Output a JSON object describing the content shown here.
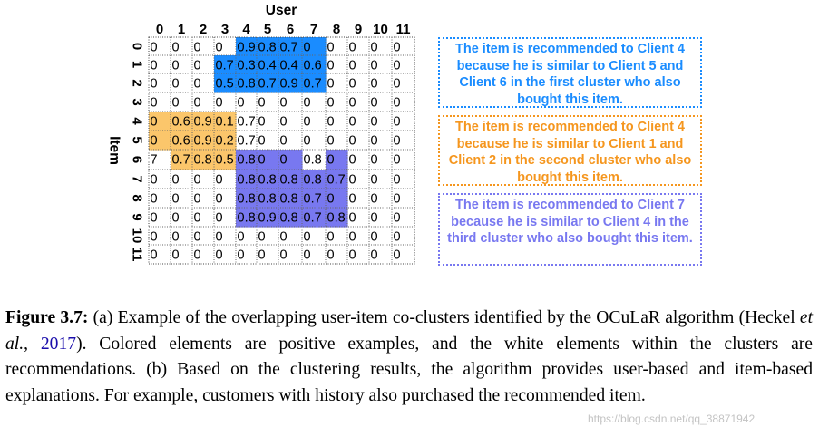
{
  "matrix": {
    "x_axis_label": "User",
    "y_axis_label": "Item",
    "col_labels": [
      "0",
      "1",
      "2",
      "3",
      "4",
      "5",
      "6",
      "7",
      "8",
      "9",
      "10",
      "11"
    ],
    "row_labels": [
      "0",
      "1",
      "2",
      "3",
      "4",
      "5",
      "6",
      "7",
      "8",
      "9",
      "10",
      "11"
    ],
    "cells": [
      [
        "0",
        "0",
        "0",
        "0",
        "0.9",
        "0.8",
        "0.7",
        "0",
        "0",
        "0",
        "0",
        "0"
      ],
      [
        "0",
        "0",
        "0",
        "0.7",
        "0.3",
        "0.4",
        "0.4",
        "0.6",
        "0",
        "0",
        "0",
        "0"
      ],
      [
        "0",
        "0",
        "0",
        "0.5",
        "0.8",
        "0.7",
        "0.9",
        "0.7",
        "0",
        "0",
        "0",
        "0"
      ],
      [
        "0",
        "0",
        "0",
        "0",
        "0",
        "0",
        "0",
        "0",
        "0",
        "0",
        "0",
        "0"
      ],
      [
        "0",
        "0.6",
        "0.9",
        "0.1",
        "0.7",
        "0",
        "0",
        "0",
        "0",
        "0",
        "0",
        "0"
      ],
      [
        "0",
        "0.6",
        "0.9",
        "0.2",
        "0.7",
        "0",
        "0",
        "0",
        "0",
        "0",
        "0",
        "0"
      ],
      [
        "7",
        "0.7",
        "0.8",
        "0.5",
        "0.8",
        "0",
        "0",
        "0.8",
        "0",
        "0",
        "0",
        "0"
      ],
      [
        "0",
        "0",
        "0",
        "0",
        "0.8",
        "0.8",
        "0.8",
        "0.8",
        "0.7",
        "0",
        "0",
        "0"
      ],
      [
        "0",
        "0",
        "0",
        "0",
        "0.8",
        "0.8",
        "0.8",
        "0.7",
        "0",
        "0",
        "0",
        "0"
      ],
      [
        "0",
        "0",
        "0",
        "0",
        "0.8",
        "0.9",
        "0.8",
        "0.7",
        "0.8",
        "0",
        "0",
        "0"
      ],
      [
        "0",
        "0",
        "0",
        "0",
        "0",
        "0",
        "0",
        "0",
        "0",
        "0",
        "0",
        "0"
      ],
      [
        "0",
        "0",
        "0",
        "0",
        "0",
        "0",
        "0",
        "0",
        "0",
        "0",
        "0",
        "0"
      ]
    ],
    "clusters": [
      {
        "color": "#1a8cff",
        "rows": [
          0,
          2
        ],
        "cols": [
          3,
          7
        ],
        "recommended": [
          [
            0,
            3
          ]
        ]
      },
      {
        "color": "#fbc66b",
        "rows": [
          4,
          6
        ],
        "cols": [
          0,
          3
        ],
        "recommended": [
          [
            6,
            0
          ]
        ]
      },
      {
        "color": "#7878f0",
        "rows": [
          6,
          9
        ],
        "cols": [
          4,
          8
        ],
        "recommended": [
          [
            6,
            7
          ]
        ]
      }
    ]
  },
  "explanations": [
    {
      "color": "#1a8cff",
      "text": "The item is recommended to Client 4 because he is similar to Client 5 and Client 6 in the first cluster who also bought this item."
    },
    {
      "color": "#f5961e",
      "text": "The item is recommended to Client 4 because he is similar to Client 1 and Client 2 in the second cluster who also bought this item."
    },
    {
      "color": "#7878f0",
      "text": "The item is recommended to Client 7 because he is similar to Client 4 in the third cluster who also bought this item."
    }
  ],
  "caption": {
    "label": "Figure 3.7:",
    "part1": " (a) Example of the overlapping user-item co-clusters identified by the OCuLaR algorithm (Heckel ",
    "italic": "et al.",
    "part2": ", ",
    "cite": "2017",
    "part3": "). Colored elements are positive examples, and the white elements within the clusters are recommendations. (b) Based on the clustering results, the algorithm provides user-based and item-based explanations. For example, customers with history also purchased the recommended item."
  },
  "watermark": "https://blog.csdn.net/qq_38871942"
}
